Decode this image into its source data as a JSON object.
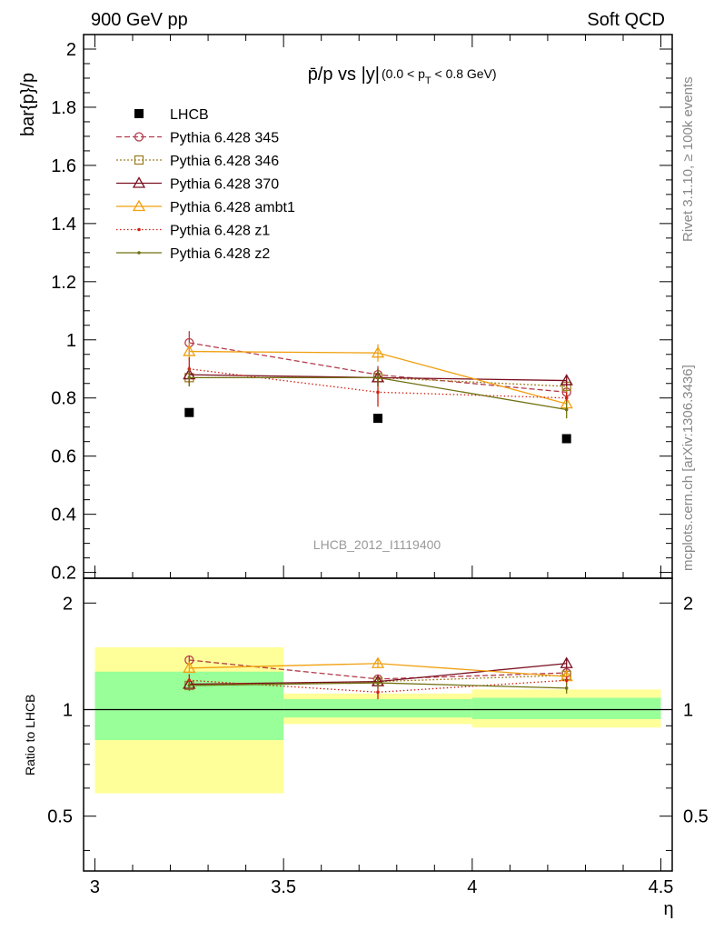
{
  "header": {
    "left": "900 GeV pp",
    "right": "Soft QCD"
  },
  "side_labels": {
    "rivet": "Rivet 3.1.10, ≥ 100k events",
    "mcplots": "mcplots.cern.ch [arXiv:1306.3436]"
  },
  "watermark": "LHCB_2012_I1119400",
  "chart_data": [
    {
      "type": "scatter",
      "title": {
        "main": "p̄/p vs |y|",
        "range_prefix": "(0.0 < p",
        "range_sub": "T",
        "range_suffix": " < 0.8 GeV)"
      },
      "ylabel": "bar{p}/p",
      "ylim": [
        0.18,
        2.05
      ],
      "yticks": [
        "0.2",
        "0.4",
        "0.6",
        "0.8",
        "1",
        "1.2",
        "1.4",
        "1.6",
        "1.8",
        "2"
      ],
      "y_tick_values": [
        0.2,
        0.4,
        0.6,
        0.8,
        1.0,
        1.2,
        1.4,
        1.6,
        1.8,
        2.0
      ],
      "x": [
        3.25,
        3.75,
        4.25
      ],
      "series": [
        {
          "name": "LHCB",
          "marker": "filled-square",
          "color": "#000000",
          "dash": "none",
          "values": [
            0.75,
            0.73,
            0.66
          ],
          "errors": [
            0,
            0,
            0
          ],
          "connect": false
        },
        {
          "name": "Pythia 6.428 345",
          "marker": "open-circle",
          "color": "#b33a4a",
          "dash": "6,3",
          "values": [
            0.99,
            0.88,
            0.82
          ],
          "errors": [
            0.04,
            0.03,
            0.02
          ],
          "connect": true
        },
        {
          "name": "Pythia 6.428 346",
          "marker": "open-square",
          "color": "#a08028",
          "dash": "2,2",
          "values": [
            0.87,
            0.87,
            0.84
          ],
          "errors": [
            0.03,
            0.03,
            0.02
          ],
          "connect": true
        },
        {
          "name": "Pythia 6.428 370",
          "marker": "open-triangle",
          "color": "#7a1020",
          "dash": "none",
          "values": [
            0.88,
            0.87,
            0.86
          ],
          "errors": [
            0.03,
            0.03,
            0.02
          ],
          "connect": true
        },
        {
          "name": "Pythia 6.428 ambt1",
          "marker": "open-triangle",
          "color": "#f0a010",
          "dash": "none",
          "values": [
            0.96,
            0.955,
            0.78
          ],
          "errors": [
            0.03,
            0.03,
            0.02
          ],
          "connect": true
        },
        {
          "name": "Pythia 6.428 z1",
          "marker": "dot",
          "color": "#d02010",
          "dash": "1.5,2.5",
          "values": [
            0.9,
            0.82,
            0.8
          ],
          "errors": [
            0.04,
            0.05,
            0.02
          ],
          "connect": true
        },
        {
          "name": "Pythia 6.428 z2",
          "marker": "dot",
          "color": "#707010",
          "dash": "none",
          "values": [
            0.87,
            0.87,
            0.76
          ],
          "errors": [
            0.03,
            0.03,
            0.03
          ],
          "connect": true
        }
      ]
    },
    {
      "type": "scatter",
      "ylabel": "Ratio to LHCB",
      "xlabel": "η",
      "xlim": [
        2.97,
        4.53
      ],
      "ylim": [
        0.35,
        2.35
      ],
      "xticks": [
        "3",
        "3.5",
        "4",
        "4.5"
      ],
      "x_tick_values": [
        3.0,
        3.5,
        4.0,
        4.5
      ],
      "yticks": [
        "0.5",
        "1",
        "2"
      ],
      "y_tick_values": [
        0.5,
        1.0,
        2.0
      ],
      "reference_line": 1.0,
      "bands": [
        {
          "x0": 3.0,
          "x1": 3.5,
          "yellow": [
            0.58,
            1.5
          ],
          "green": [
            0.82,
            1.28
          ]
        },
        {
          "x0": 3.5,
          "x1": 4.0,
          "yellow": [
            0.91,
            1.11
          ],
          "green": [
            0.95,
            1.07
          ]
        },
        {
          "x0": 4.0,
          "x1": 4.5,
          "yellow": [
            0.89,
            1.14
          ],
          "green": [
            0.94,
            1.08
          ]
        }
      ],
      "x": [
        3.25,
        3.75,
        4.25
      ],
      "series": [
        {
          "name": "Pythia 6.428 345",
          "color": "#b33a4a",
          "dash": "6,3",
          "marker": "open-circle",
          "values": [
            1.38,
            1.22,
            1.27
          ],
          "errors": [
            0.04,
            0.03,
            0.03
          ]
        },
        {
          "name": "Pythia 6.428 346",
          "color": "#a08028",
          "dash": "2,2",
          "marker": "open-square",
          "values": [
            1.17,
            1.2,
            1.25
          ],
          "errors": [
            0.03,
            0.03,
            0.03
          ]
        },
        {
          "name": "Pythia 6.428 370",
          "color": "#7a1020",
          "dash": "none",
          "marker": "open-triangle",
          "values": [
            1.18,
            1.2,
            1.35
          ],
          "errors": [
            0.03,
            0.03,
            0.04
          ]
        },
        {
          "name": "Pythia 6.428 ambt1",
          "color": "#f0a010",
          "dash": "none",
          "marker": "open-triangle",
          "values": [
            1.31,
            1.35,
            1.24
          ],
          "errors": [
            0.04,
            0.04,
            0.03
          ]
        },
        {
          "name": "Pythia 6.428 z1",
          "color": "#d02010",
          "dash": "1.5,2.5",
          "marker": "dot",
          "values": [
            1.21,
            1.12,
            1.21
          ],
          "errors": [
            0.05,
            0.05,
            0.03
          ]
        },
        {
          "name": "Pythia 6.428 z2",
          "color": "#707010",
          "dash": "none",
          "marker": "dot",
          "values": [
            1.17,
            1.19,
            1.15
          ],
          "errors": [
            0.04,
            0.04,
            0.04
          ]
        }
      ]
    }
  ]
}
